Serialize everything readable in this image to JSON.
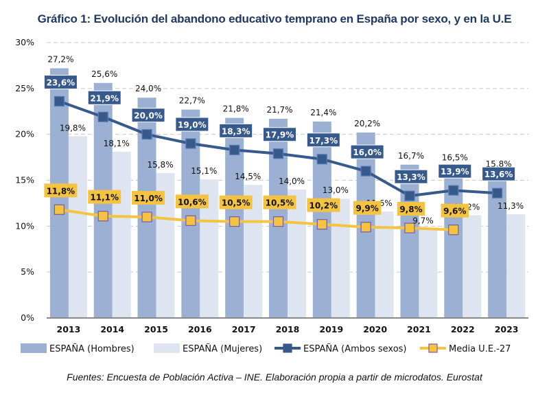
{
  "title": "Gráfico 1: Evolución del abandono educativo temprano en España por sexo, y en la U.E",
  "footer": "Fuentes: Encuesta de Población Activa – INE. Elaboración propia a partir de microdatos. Eurostat",
  "colors": {
    "hombres": "#9bb0d3",
    "mujeres": "#dee5f0",
    "ambos": "#375a8c",
    "ue": "#f5c342",
    "ue_marker_border": "#7a5aa0",
    "grid": "#c8c8c8",
    "axis": "#888888"
  },
  "chart_data": {
    "type": "bar",
    "title": "Gráfico 1: Evolución del abandono educativo temprano en España por sexo, y en la U.E",
    "xlabel": "",
    "ylabel": "",
    "ylim": [
      0,
      30
    ],
    "yticks": [
      "0%",
      "5%",
      "10%",
      "15%",
      "20%",
      "25%",
      "30%"
    ],
    "grid": true,
    "legend_position": "bottom",
    "categories": [
      "2013",
      "2014",
      "2015",
      "2016",
      "2017",
      "2018",
      "2019",
      "2020",
      "2021",
      "2022",
      "2023"
    ],
    "series": [
      {
        "name": "ESPAÑA (Hombres)",
        "type": "bar",
        "values": [
          27.2,
          25.6,
          24.0,
          22.7,
          21.8,
          21.7,
          21.4,
          20.2,
          16.7,
          16.5,
          15.8
        ],
        "labels": [
          "27,2%",
          "25,6%",
          "24,0%",
          "22,7%",
          "21,8%",
          "21,7%",
          "21,4%",
          "20,2%",
          "16,7%",
          "16,5%",
          "15,8%"
        ]
      },
      {
        "name": "ESPAÑA (Mujeres)",
        "type": "bar",
        "values": [
          19.8,
          18.1,
          15.8,
          15.1,
          14.5,
          14.0,
          13.0,
          11.6,
          9.7,
          11.2,
          11.3
        ],
        "labels": [
          "19,8%",
          "18,1%",
          "15,8%",
          "15,1%",
          "14,5%",
          "14,0%",
          "13,0%",
          "11,6%",
          "9,7%",
          "11,2%",
          "11,3%"
        ]
      },
      {
        "name": "ESPAÑA (Ambos sexos)",
        "type": "line",
        "values": [
          23.6,
          21.9,
          20.0,
          19.0,
          18.3,
          17.9,
          17.3,
          16.0,
          13.3,
          13.9,
          13.6
        ],
        "labels": [
          "23,6%",
          "21,9%",
          "20,0%",
          "19,0%",
          "18,3%",
          "17,9%",
          "17,3%",
          "16,0%",
          "13,3%",
          "13,9%",
          "13,6%"
        ]
      },
      {
        "name": "Media U.E.-27",
        "type": "line",
        "values": [
          11.8,
          11.1,
          11.0,
          10.6,
          10.5,
          10.5,
          10.2,
          9.9,
          9.8,
          9.6,
          null
        ],
        "labels": [
          "11,8%",
          "11,1%",
          "11,0%",
          "10,6%",
          "10,5%",
          "10,5%",
          "10,2%",
          "9,9%",
          "9,8%",
          "9,6%",
          null
        ]
      }
    ]
  }
}
